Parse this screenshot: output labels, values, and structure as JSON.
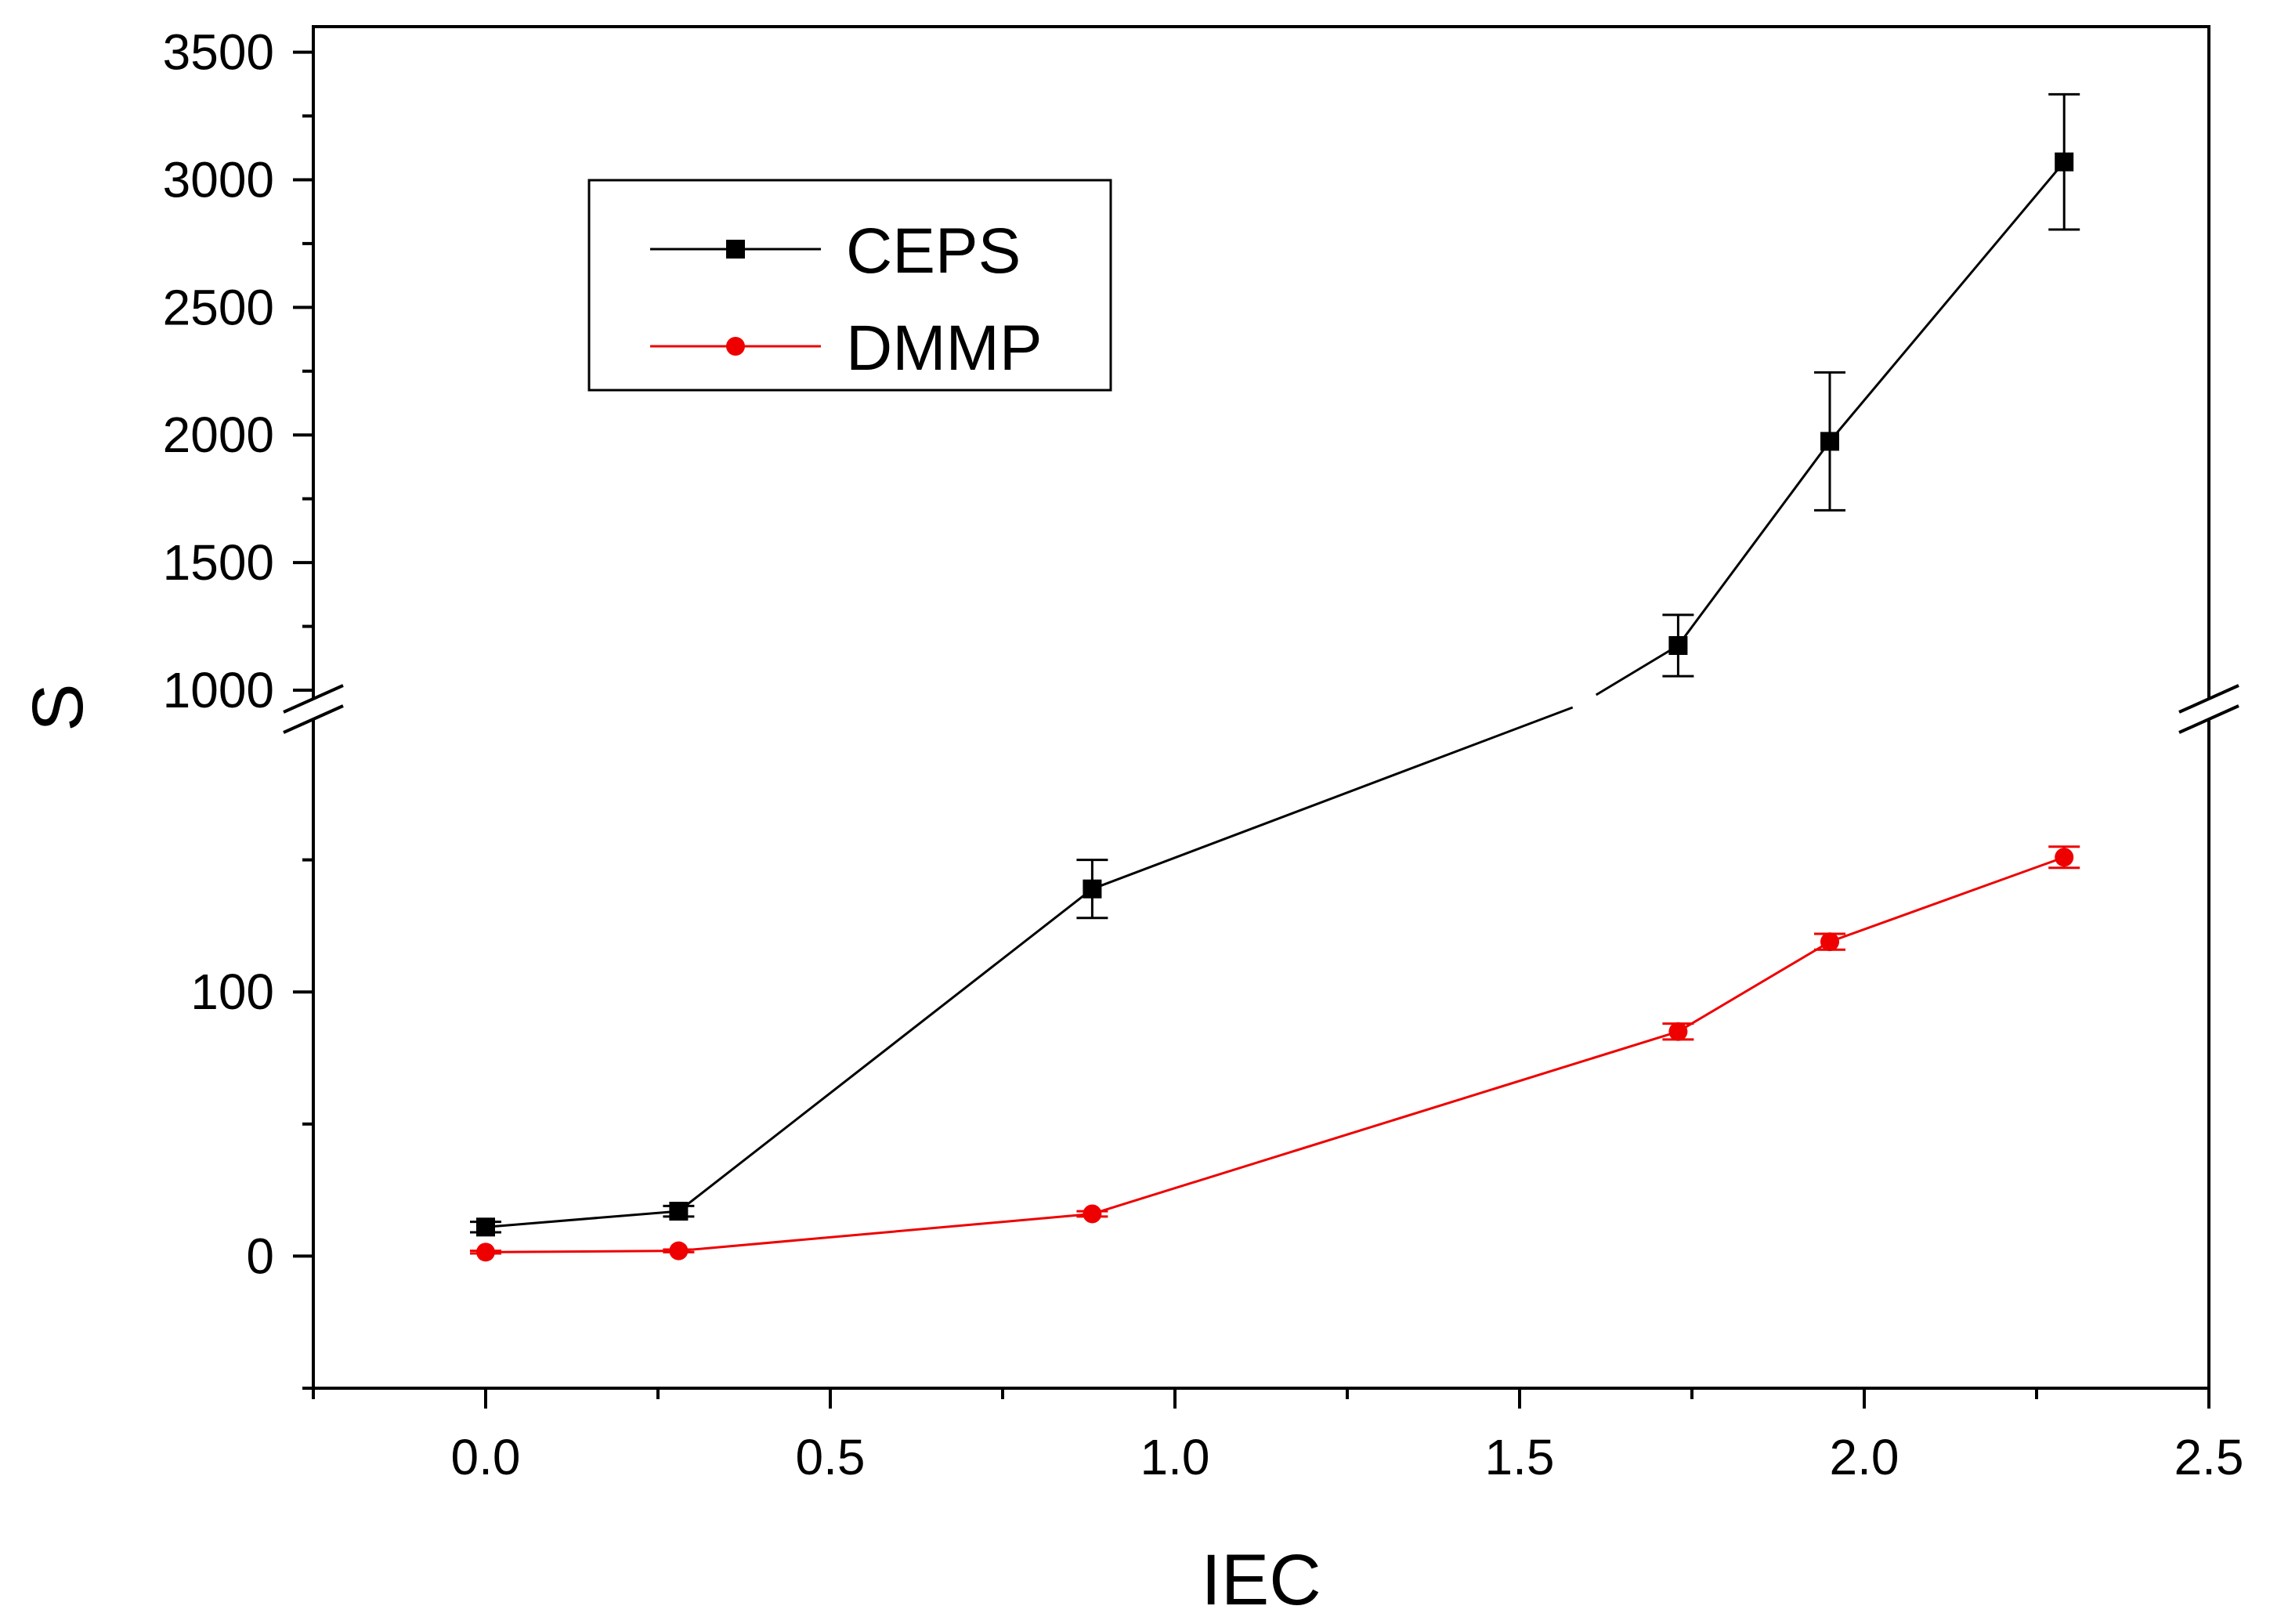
{
  "chart_data": {
    "type": "line",
    "title": "",
    "xlabel": "IEC",
    "ylabel": "S",
    "xlim": [
      -0.25,
      2.5
    ],
    "x_ticks": [
      "0.0",
      "0.5",
      "1.0",
      "1.5",
      "2.0",
      "2.5"
    ],
    "x_tick_values": [
      0.0,
      0.5,
      1.0,
      1.5,
      2.0,
      2.5
    ],
    "y_break": {
      "lower_range": [
        -50,
        200
      ],
      "upper_range": [
        1000,
        3600
      ],
      "lower_ticks": [
        "0",
        "100"
      ],
      "lower_tick_values": [
        0,
        100
      ],
      "upper_ticks": [
        "1000",
        "1500",
        "2000",
        "2500",
        "3000",
        "3500"
      ],
      "upper_tick_values": [
        1000,
        1500,
        2000,
        2500,
        3000,
        3500
      ]
    },
    "legend_position": "top-left",
    "series": [
      {
        "name": "CEPS",
        "color": "#000000",
        "marker": "square",
        "x": [
          0.0,
          0.28,
          0.88,
          1.73,
          1.95,
          2.29
        ],
        "y": [
          11,
          17,
          139,
          1175,
          1975,
          3070
        ],
        "err": [
          2,
          2,
          11,
          120,
          270,
          265
        ]
      },
      {
        "name": "DMMP",
        "color": "#ee0000",
        "marker": "circle",
        "x": [
          0.0,
          0.28,
          0.88,
          1.73,
          1.95,
          2.29
        ],
        "y": [
          1.5,
          2,
          16,
          85,
          119,
          151
        ],
        "err": [
          0.5,
          0.5,
          1,
          3,
          3,
          4
        ]
      }
    ]
  }
}
